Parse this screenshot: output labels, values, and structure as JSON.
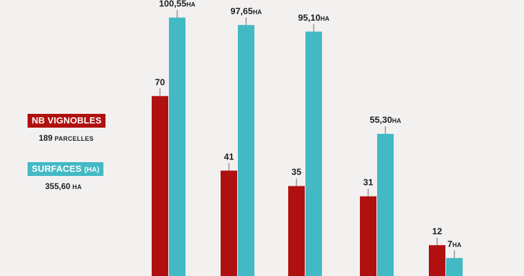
{
  "legend": {
    "count": {
      "label_main": "NB VIGNOBLES",
      "total_value": "189",
      "total_unit": "PARCELLES",
      "color": "#b01010"
    },
    "area": {
      "label_main": "SURFACES",
      "label_unit": "(HA)",
      "total_value": "355,60",
      "total_unit": "HA",
      "color": "#43b9c5"
    }
  },
  "chart_data": {
    "type": "bar",
    "grid": false,
    "categories": [
      "",
      "",
      "",
      "",
      ""
    ],
    "series": [
      {
        "name": "NB VIGNOBLES",
        "color": "#b01010",
        "values": [
          70,
          41,
          35,
          31,
          12
        ],
        "labels": [
          "70",
          "41",
          "35",
          "31",
          "12"
        ],
        "label_units": [
          "",
          "",
          "",
          "",
          ""
        ]
      },
      {
        "name": "SURFACES (HA)",
        "color": "#43b9c5",
        "values": [
          100.55,
          97.65,
          95.1,
          55.3,
          7
        ],
        "labels": [
          "100,55",
          "97,65",
          "95,10",
          "55,30",
          "7"
        ],
        "label_units": [
          "HA",
          "HA",
          "HA",
          "HA",
          "HA"
        ]
      }
    ]
  }
}
